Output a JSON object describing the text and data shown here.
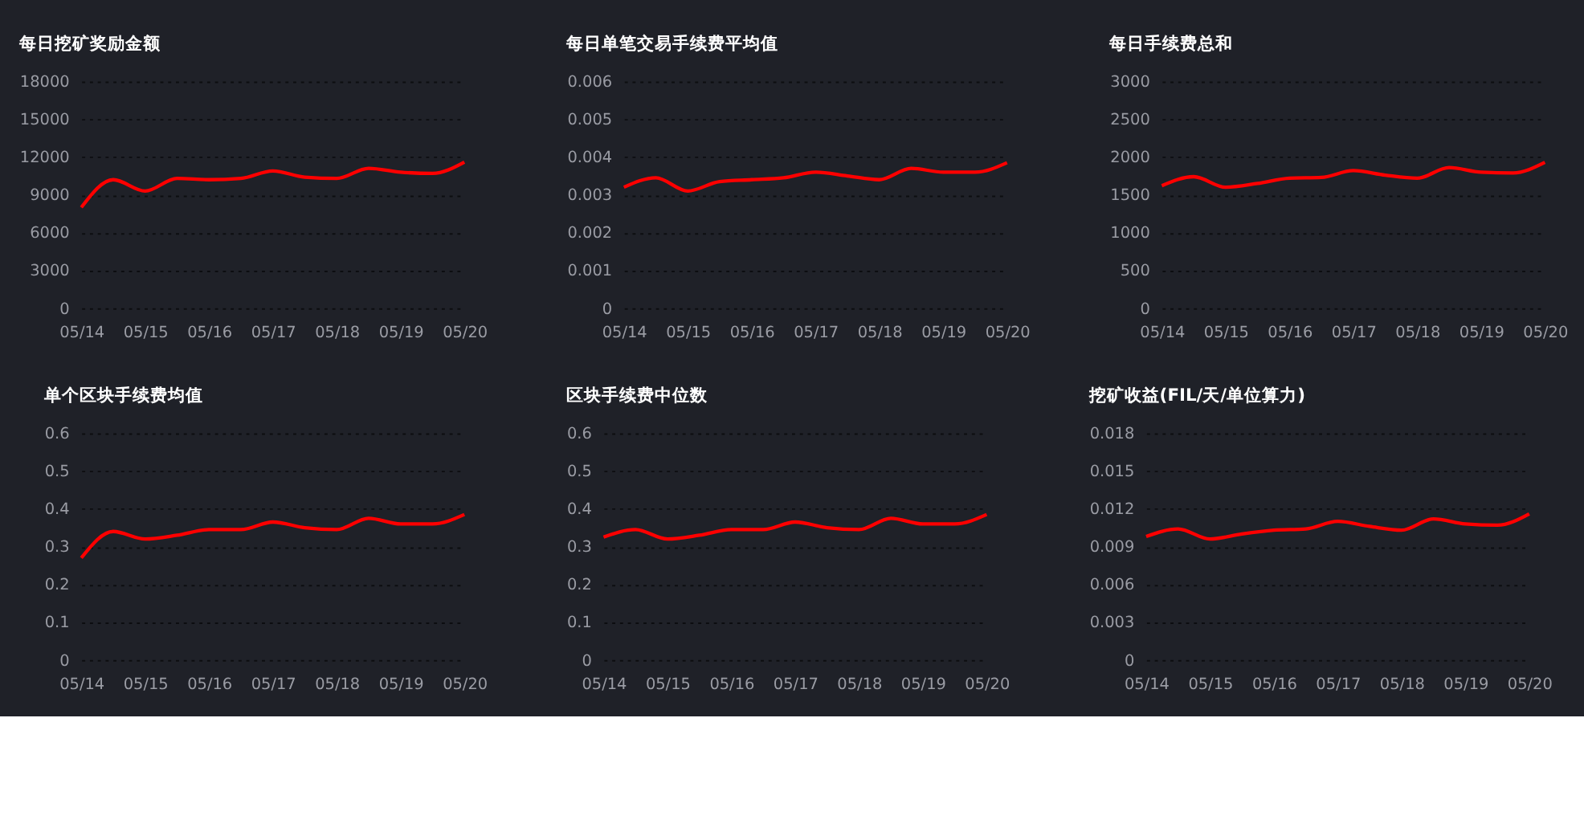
{
  "chart_data": [
    {
      "type": "line",
      "title": "每日挖矿奖励金额",
      "categories": [
        "05/14",
        null,
        "05/15",
        null,
        "05/16",
        null,
        "05/17",
        null,
        "05/18",
        null,
        "05/19",
        null,
        "05/20"
      ],
      "series": [
        {
          "color": "#ff0000",
          "values": [
            8000,
            10200,
            9300,
            10300,
            10200,
            10300,
            10900,
            10400,
            10300,
            11100,
            10800,
            10700,
            11600
          ]
        }
      ],
      "ylim": [
        0,
        18000
      ],
      "yticks": [
        0,
        3000,
        6000,
        9000,
        12000,
        15000,
        18000
      ],
      "grid": "y",
      "marker": "none",
      "line_style": "solid"
    },
    {
      "type": "line",
      "title": "每日单笔交易手续费平均值",
      "categories": [
        "05/14",
        null,
        "05/15",
        null,
        "05/16",
        null,
        "05/17",
        null,
        "05/18",
        null,
        "05/19",
        null,
        "05/20"
      ],
      "series": [
        {
          "color": "#ff0000",
          "values": [
            0.0032,
            0.00345,
            0.0031,
            0.00335,
            0.0034,
            0.00345,
            0.0036,
            0.0035,
            0.0034,
            0.0037,
            0.0036,
            0.0036,
            0.00385
          ]
        }
      ],
      "ylim": [
        0,
        0.006
      ],
      "yticks": [
        0,
        0.001,
        0.002,
        0.003,
        0.004,
        0.005,
        0.006
      ],
      "grid": "y",
      "marker": "none",
      "line_style": "solid"
    },
    {
      "type": "line",
      "title": "每日手续费总和",
      "categories": [
        "05/14",
        null,
        "05/15",
        null,
        "05/16",
        null,
        "05/17",
        null,
        "05/18",
        null,
        "05/19",
        null,
        "05/20"
      ],
      "series": [
        {
          "color": "#ff0000",
          "values": [
            1620,
            1740,
            1600,
            1650,
            1720,
            1730,
            1820,
            1760,
            1720,
            1860,
            1800,
            1790,
            1930
          ]
        }
      ],
      "ylim": [
        0,
        3000
      ],
      "yticks": [
        0,
        500,
        1000,
        1500,
        2000,
        2500,
        3000
      ],
      "grid": "y",
      "marker": "none",
      "line_style": "solid"
    },
    {
      "type": "line",
      "title": "单个区块手续费均值",
      "categories": [
        "05/14",
        null,
        "05/15",
        null,
        "05/16",
        null,
        "05/17",
        null,
        "05/18",
        null,
        "05/19",
        null,
        "05/20"
      ],
      "series": [
        {
          "color": "#ff0000",
          "values": [
            0.27,
            0.34,
            0.32,
            0.33,
            0.345,
            0.345,
            0.365,
            0.35,
            0.345,
            0.375,
            0.36,
            0.36,
            0.385
          ]
        }
      ],
      "ylim": [
        0,
        0.6
      ],
      "yticks": [
        0,
        0.1,
        0.2,
        0.3,
        0.4,
        0.5,
        0.6
      ],
      "grid": "y",
      "marker": "none",
      "line_style": "solid"
    },
    {
      "type": "line",
      "title": "区块手续费中位数",
      "categories": [
        "05/14",
        null,
        "05/15",
        null,
        "05/16",
        null,
        "05/17",
        null,
        "05/18",
        null,
        "05/19",
        null,
        "05/20"
      ],
      "series": [
        {
          "color": "#ff0000",
          "values": [
            0.325,
            0.345,
            0.32,
            0.33,
            0.345,
            0.345,
            0.365,
            0.35,
            0.345,
            0.375,
            0.36,
            0.36,
            0.385
          ]
        }
      ],
      "ylim": [
        0,
        0.6
      ],
      "yticks": [
        0,
        0.1,
        0.2,
        0.3,
        0.4,
        0.5,
        0.6
      ],
      "grid": "y",
      "marker": "none",
      "line_style": "solid"
    },
    {
      "type": "line",
      "title": "挖矿收益(FIL/天/单位算力)",
      "categories": [
        "05/14",
        null,
        "05/15",
        null,
        "05/16",
        null,
        "05/17",
        null,
        "05/18",
        null,
        "05/19",
        null,
        "05/20"
      ],
      "series": [
        {
          "color": "#ff0000",
          "values": [
            0.0098,
            0.0104,
            0.0096,
            0.01,
            0.0103,
            0.0104,
            0.011,
            0.0106,
            0.0103,
            0.0112,
            0.0108,
            0.0107,
            0.0116
          ]
        }
      ],
      "ylim": [
        0,
        0.018
      ],
      "yticks": [
        0,
        0.003,
        0.006,
        0.009,
        0.012,
        0.015,
        0.018
      ],
      "grid": "y",
      "marker": "none",
      "line_style": "solid"
    }
  ]
}
